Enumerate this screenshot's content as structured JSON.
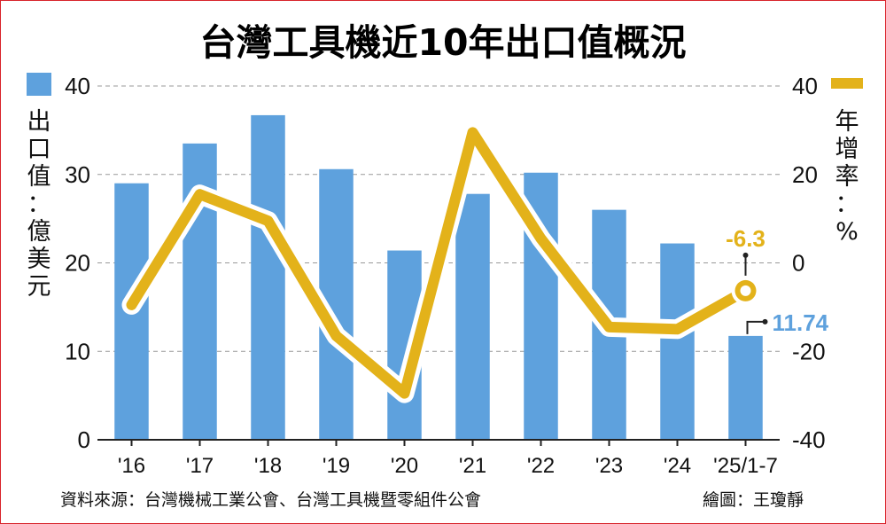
{
  "title": "台灣工具機近10年出口值概況",
  "colors": {
    "title": "#2f5fa8",
    "bar": "#5ea1dd",
    "line": "#e3b21a",
    "line_halo": "#ffffff",
    "bar_label": "#5ea1dd",
    "line_label": "#e3b21a",
    "grid": "#999999",
    "frame": "#d8232a"
  },
  "chart_data": {
    "type": "bar+line",
    "categories": [
      "'16",
      "'17",
      "'18",
      "'19",
      "'20",
      "'21",
      "'22",
      "'23",
      "'24",
      "'25/1-7"
    ],
    "series": [
      {
        "name": "出口值：億美元",
        "kind": "bar",
        "axis": "left",
        "values": [
          29.0,
          33.5,
          36.7,
          30.6,
          21.4,
          27.8,
          30.2,
          26.0,
          22.2,
          11.74
        ]
      },
      {
        "name": "年增率：%",
        "kind": "line",
        "axis": "right",
        "values": [
          -9.5,
          15.5,
          9.5,
          -16.5,
          -29.5,
          29.5,
          5.5,
          -14.5,
          -15.0,
          -6.3
        ]
      }
    ],
    "y_left": {
      "label": "出口值：億美元",
      "ylim": [
        0,
        40
      ],
      "ticks": [
        "0",
        "10",
        "20",
        "30",
        "40"
      ]
    },
    "y_right": {
      "label": "年增率：%",
      "ylim": [
        -40,
        40
      ],
      "ticks": [
        "-40",
        "-20",
        "0",
        "20",
        "40"
      ]
    },
    "annotations": [
      {
        "series": 0,
        "index": 9,
        "text": "11.74"
      },
      {
        "series": 1,
        "index": 9,
        "text": "-6.3"
      }
    ],
    "grid": true,
    "legend": "top-left and top-right"
  },
  "footer": {
    "source": "資料來源：台灣機械工業公會、台灣工具機暨零組件公會",
    "credit": "繪圖：王瓊靜"
  }
}
